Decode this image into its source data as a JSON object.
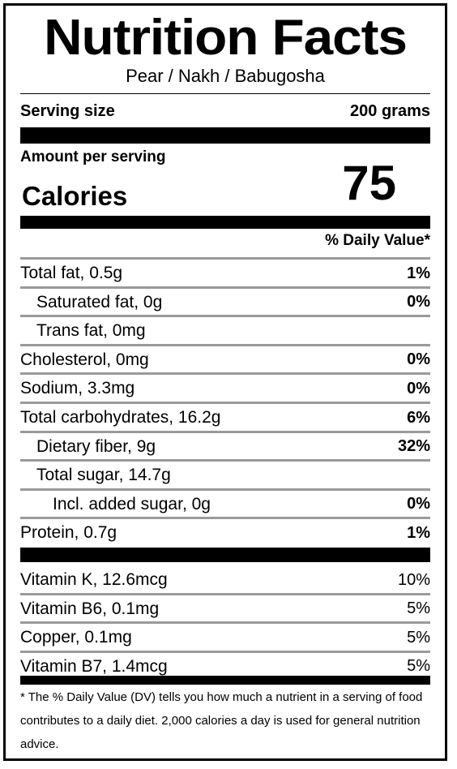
{
  "title": "Nutrition Facts",
  "subtitle": "Pear / Nakh / Babugosha",
  "serving": {
    "label": "Serving size",
    "value": "200 grams"
  },
  "amount_label": "Amount per serving",
  "calories": {
    "label": "Calories",
    "value": "75"
  },
  "dv_header": "% Daily Value*",
  "nutrients": [
    {
      "name": "Total fat, 0.5g",
      "dv": "1%",
      "indent": 0
    },
    {
      "name": "Saturated fat, 0g",
      "dv": "0%",
      "indent": 1
    },
    {
      "name": "Trans fat, 0mg",
      "dv": "",
      "indent": 1
    },
    {
      "name": "Cholesterol, 0mg",
      "dv": "0%",
      "indent": 0
    },
    {
      "name": "Sodium, 3.3mg",
      "dv": "0%",
      "indent": 0
    },
    {
      "name": "Total carbohydrates, 16.2g",
      "dv": "6%",
      "indent": 0
    },
    {
      "name": "Dietary fiber, 9g",
      "dv": "32%",
      "indent": 1
    },
    {
      "name": "Total sugar, 14.7g",
      "dv": "",
      "indent": 1
    },
    {
      "name": "Incl. added sugar, 0g",
      "dv": "0%",
      "indent": 2
    },
    {
      "name": "Protein, 0.7g",
      "dv": "1%",
      "indent": 0
    }
  ],
  "vitamins": [
    {
      "name": "Vitamin K, 12.6mcg",
      "dv": "10%"
    },
    {
      "name": "Vitamin B6, 0.1mg",
      "dv": "5%"
    },
    {
      "name": "Copper, 0.1mg",
      "dv": "5%"
    },
    {
      "name": "Vitamin B7, 1.4mcg",
      "dv": "5%"
    }
  ],
  "footnote": "* The % Daily Value (DV) tells you how much a nutrient in a serving of food contributes to a daily diet. 2,000 calories a day is used for general nutrition advice."
}
